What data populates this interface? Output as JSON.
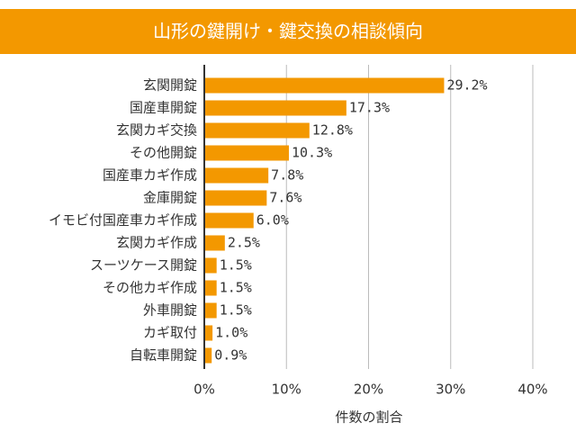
{
  "chart_data": {
    "type": "bar",
    "orientation": "horizontal",
    "title": "山形の鍵開け・鍵交換の相談傾向",
    "x_label": "件数の割合",
    "categories": [
      "玄関開錠",
      "国産車開錠",
      "玄関カギ交換",
      "その他開錠",
      "国産車カギ作成",
      "金庫開錠",
      "イモビ付国産車カギ作成",
      "玄関カギ作成",
      "スーツケース開錠",
      "その他カギ作成",
      "外車開錠",
      "カギ取付",
      "自転車開錠"
    ],
    "values": [
      29.2,
      17.3,
      12.8,
      10.3,
      7.8,
      7.6,
      6.0,
      2.5,
      1.5,
      1.5,
      1.5,
      1.0,
      0.9
    ],
    "value_labels": [
      "29.2%",
      "17.3%",
      "12.8%",
      "10.3%",
      "7.8%",
      "7.6%",
      "6.0%",
      "2.5%",
      "1.5%",
      "1.5%",
      "1.5%",
      "1.0%",
      "0.9%"
    ],
    "color": "#f39800",
    "xlim": [
      0,
      40
    ],
    "xticks": [
      {
        "value": 0,
        "label": "0%"
      },
      {
        "value": 10,
        "label": "10%"
      },
      {
        "value": 20,
        "label": "20%"
      },
      {
        "value": 30,
        "label": "30%"
      },
      {
        "value": 40,
        "label": "40%"
      }
    ],
    "grid": true
  }
}
